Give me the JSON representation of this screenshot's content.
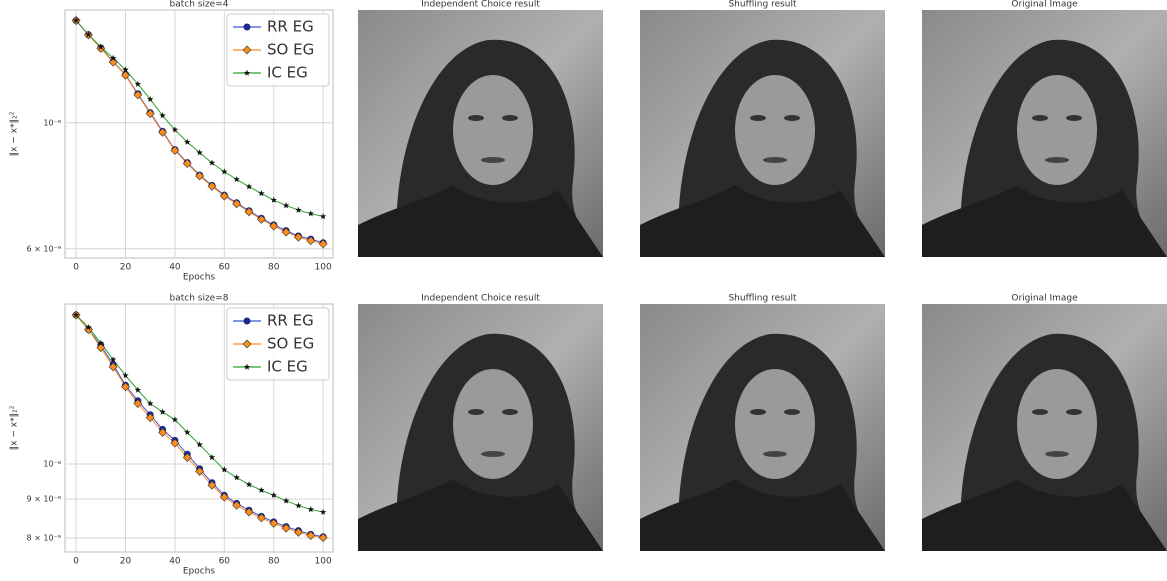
{
  "chart_data": [
    {
      "type": "line",
      "title": "batch size=4",
      "xlabel": "Epochs",
      "ylabel": "‖x − x*‖₂²",
      "log_scale": true,
      "grid": true,
      "legend": "upper right",
      "xlim": [
        -4.5,
        104
      ],
      "xticks": [
        0,
        20,
        40,
        60,
        80,
        100
      ],
      "ylim": [
        5.78e-09,
        1.58e-08
      ],
      "yticks": [
        {
          "value": 1e-08,
          "label": "10⁻⁸"
        },
        {
          "value": 6e-09,
          "label": "6 × 10⁻⁹"
        }
      ],
      "x": [
        0,
        5,
        10,
        15,
        20,
        25,
        30,
        35,
        40,
        45,
        50,
        55,
        60,
        65,
        70,
        75,
        80,
        85,
        90,
        95,
        100
      ],
      "series": [
        {
          "name": "RR EG",
          "color": "#3b55d6",
          "marker": "circle",
          "values": [
            1.514e-08,
            1.429e-08,
            1.355e-08,
            1.282e-08,
            1.216e-08,
            1.125e-08,
            1.042e-08,
            9.66e-09,
            8.97e-09,
            8.51e-09,
            8.09e-09,
            7.76e-09,
            7.46e-09,
            7.23e-09,
            7e-09,
            6.79e-09,
            6.61e-09,
            6.46e-09,
            6.32e-09,
            6.24e-09,
            6.15e-09
          ]
        },
        {
          "name": "SO EG",
          "color": "#ff8c1a",
          "marker": "diamond",
          "values": [
            1.514e-08,
            1.428e-08,
            1.352e-08,
            1.279e-08,
            1.213e-08,
            1.12e-08,
            1.038e-08,
            9.62e-09,
            8.94e-09,
            8.48e-09,
            8.06e-09,
            7.73e-09,
            7.43e-09,
            7.2e-09,
            6.97e-09,
            6.76e-09,
            6.58e-09,
            6.42e-09,
            6.29e-09,
            6.2e-09,
            6.12e-09
          ]
        },
        {
          "name": "IC EG",
          "color": "#2ca02c",
          "marker": "star",
          "values": [
            1.514e-08,
            1.43e-08,
            1.36e-08,
            1.3e-08,
            1.24e-08,
            1.17e-08,
            1.1e-08,
            1.03e-08,
            9.72e-09,
            9.25e-09,
            8.86e-09,
            8.5e-09,
            8.2e-09,
            7.95e-09,
            7.72e-09,
            7.51e-09,
            7.31e-09,
            7.15e-09,
            7.02e-09,
            6.92e-09,
            6.84e-09
          ]
        }
      ]
    },
    {
      "type": "line",
      "title": "batch size=8",
      "xlabel": "Epochs",
      "ylabel": "‖x − x*‖₂²",
      "log_scale": true,
      "grid": true,
      "legend": "upper right",
      "xlim": [
        -4.5,
        104
      ],
      "xticks": [
        0,
        20,
        40,
        60,
        80,
        100
      ],
      "ylim": [
        7.67e-09,
        1.62e-08
      ],
      "yticks": [
        {
          "value": 1e-08,
          "label": "10⁻⁸"
        },
        {
          "value": 9e-09,
          "label": "9 × 10⁻⁹"
        },
        {
          "value": 8e-09,
          "label": "8 × 10⁻⁹"
        }
      ],
      "x": [
        0,
        5,
        10,
        15,
        20,
        25,
        30,
        35,
        40,
        45,
        50,
        55,
        60,
        65,
        70,
        75,
        80,
        85,
        90,
        95,
        100
      ],
      "series": [
        {
          "name": "RR EG",
          "color": "#3b55d6",
          "marker": "circle",
          "values": [
            1.567e-08,
            1.5e-08,
            1.43e-08,
            1.35e-08,
            1.268e-08,
            1.21e-08,
            1.16e-08,
            1.11e-08,
            1.074e-08,
            1.03e-08,
            9.86e-09,
            9.45e-09,
            9.1e-09,
            8.88e-09,
            8.7e-09,
            8.54e-09,
            8.4e-09,
            8.28e-09,
            8.18e-09,
            8.09e-09,
            8.03e-09
          ]
        },
        {
          "name": "SO EG",
          "color": "#ff8c1a",
          "marker": "diamond",
          "values": [
            1.567e-08,
            1.5e-08,
            1.42e-08,
            1.34e-08,
            1.262e-08,
            1.2e-08,
            1.15e-08,
            1.1e-08,
            1.065e-08,
            1.02e-08,
            9.78e-09,
            9.38e-09,
            9.05e-09,
            8.83e-09,
            8.65e-09,
            8.5e-09,
            8.36e-09,
            8.24e-09,
            8.14e-09,
            8.06e-09,
            8.01e-09
          ]
        },
        {
          "name": "IC EG",
          "color": "#2ca02c",
          "marker": "star",
          "values": [
            1.567e-08,
            1.51e-08,
            1.44e-08,
            1.37e-08,
            1.306e-08,
            1.25e-08,
            1.2e-08,
            1.17e-08,
            1.143e-08,
            1.1e-08,
            1.06e-08,
            1.02e-08,
            9.83e-09,
            9.6e-09,
            9.4e-09,
            9.24e-09,
            9.1e-09,
            8.95e-09,
            8.82e-09,
            8.72e-09,
            8.65e-09
          ]
        }
      ]
    }
  ],
  "image_panels": [
    {
      "title": "Independent Choice result"
    },
    {
      "title": "Shuffling result"
    },
    {
      "title": "Original Image"
    },
    {
      "title": "Independent Choice result"
    },
    {
      "title": "Shuffling result"
    },
    {
      "title": "Original Image"
    }
  ]
}
